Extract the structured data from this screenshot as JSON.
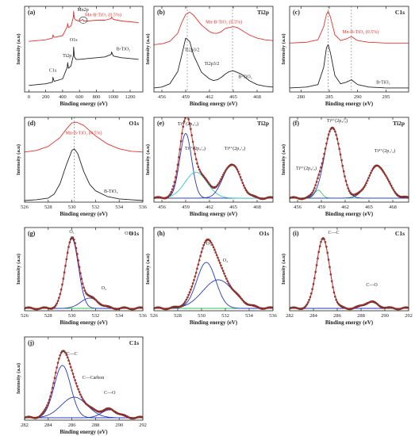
{
  "colors": {
    "black": "#222222",
    "red": "#e4322b",
    "blue": "#2638c8",
    "green": "#36c45a",
    "cyan": "#38c7c4",
    "dot": "#c0392b"
  },
  "chart_data": [
    {
      "id": "a",
      "type": "line",
      "tag": "(a)",
      "xlabel": "Binding energy (eV)",
      "ylabel": "Intensity (a.u)",
      "xlim": [
        -50,
        1350
      ],
      "ylim": [
        0,
        1.05
      ],
      "ticks": [
        0,
        200,
        400,
        600,
        800,
        1000,
        1200
      ],
      "series": [
        {
          "name": "Mn-B-TiO2 (0.5%)",
          "color": "red",
          "x": [
            0,
            100,
            200,
            280,
            285,
            300,
            400,
            455,
            460,
            470,
            500,
            528,
            531,
            540,
            560,
            600,
            640,
            650,
            700,
            800,
            900,
            975,
            980,
            1000,
            1050,
            1100,
            1200,
            1300
          ],
          "y": [
            0.62,
            0.63,
            0.64,
            0.66,
            0.7,
            0.67,
            0.69,
            0.8,
            0.84,
            0.79,
            0.81,
            0.92,
            0.99,
            0.9,
            0.88,
            0.87,
            0.89,
            0.87,
            0.87,
            0.88,
            0.88,
            0.9,
            0.92,
            0.89,
            0.88,
            0.87,
            0.86,
            0.85
          ]
        },
        {
          "name": "B-TiO2",
          "color": "black",
          "x": [
            0,
            100,
            200,
            280,
            285,
            300,
            400,
            455,
            460,
            470,
            500,
            528,
            531,
            540,
            560,
            600,
            700,
            800,
            900,
            975,
            980,
            1000,
            1050,
            1100,
            1200,
            1300
          ],
          "y": [
            0.08,
            0.09,
            0.1,
            0.12,
            0.18,
            0.13,
            0.16,
            0.3,
            0.36,
            0.29,
            0.32,
            0.45,
            0.55,
            0.43,
            0.4,
            0.4,
            0.41,
            0.42,
            0.43,
            0.46,
            0.49,
            0.44,
            0.43,
            0.42,
            0.41,
            0.4
          ]
        }
      ],
      "annotations": [
        {
          "text": "Mn2p",
          "x": 641,
          "y": 0.99,
          "color": "black"
        },
        {
          "text": "O1s",
          "x": 530,
          "y": 0.62,
          "color": "black"
        },
        {
          "text": "Ti2p",
          "x": 455,
          "y": 0.43,
          "color": "black"
        },
        {
          "text": "C1s",
          "x": 285,
          "y": 0.25,
          "color": "black"
        },
        {
          "text": "Mn-B-TiO₂ (0.5%)",
          "x": 880,
          "y": 0.93,
          "color": "red"
        },
        {
          "text": "B-TiO₂",
          "x": 1120,
          "y": 0.51,
          "color": "black"
        }
      ]
    },
    {
      "id": "b",
      "type": "line",
      "tag": "(b)",
      "corner": "Ti2p",
      "xlabel": "Binding energy (eV)",
      "ylabel": "Intensity (a.u)",
      "xlim": [
        455,
        470
      ],
      "ylim": [
        0,
        1.05
      ],
      "ticks": [
        456,
        459,
        462,
        465,
        468
      ],
      "vlines": [
        459.2,
        464.9
      ],
      "series": [
        {
          "name": "Mn-B-TiO2 (0.5%)",
          "color": "red",
          "x": [
            455,
            456,
            457,
            458,
            458.5,
            459,
            459.5,
            460,
            461,
            462,
            462.5,
            463,
            463.5,
            464,
            465,
            465.5,
            466,
            467,
            468,
            469,
            470
          ],
          "y": [
            0.58,
            0.59,
            0.62,
            0.72,
            0.85,
            0.95,
            0.98,
            0.94,
            0.82,
            0.74,
            0.72,
            0.72,
            0.74,
            0.78,
            0.8,
            0.79,
            0.76,
            0.7,
            0.66,
            0.64,
            0.63
          ]
        },
        {
          "name": "B-TiO2",
          "color": "black",
          "x": [
            455,
            456,
            457,
            458,
            458.5,
            459,
            459.5,
            460,
            461,
            462,
            462.5,
            463,
            463.5,
            464,
            464.5,
            465,
            466,
            467,
            468,
            469,
            470
          ],
          "y": [
            0.05,
            0.06,
            0.1,
            0.25,
            0.45,
            0.66,
            0.62,
            0.45,
            0.24,
            0.16,
            0.14,
            0.15,
            0.18,
            0.22,
            0.25,
            0.26,
            0.22,
            0.14,
            0.09,
            0.07,
            0.06
          ]
        }
      ],
      "annotations": [
        {
          "text": "Mn-B-TiO₂ (0.5%)",
          "x": 463.8,
          "y": 0.84,
          "color": "red"
        },
        {
          "text": "Ti2p3/2",
          "x": 459.8,
          "y": 0.5,
          "color": "black"
        },
        {
          "text": "Ti2p3/2",
          "x": 462.3,
          "y": 0.33,
          "color": "black"
        },
        {
          "text": "B-TiO₂",
          "x": 466.5,
          "y": 0.17,
          "color": "black"
        }
      ]
    },
    {
      "id": "c",
      "type": "line",
      "tag": "(c)",
      "corner": "C1s",
      "xlabel": "Binding energy (eV)",
      "ylabel": "Intensity (a.u)",
      "xlim": [
        278,
        299
      ],
      "ylim": [
        0,
        1.05
      ],
      "ticks": [
        280,
        285,
        290,
        295
      ],
      "vlines": [
        284.8,
        288.9
      ],
      "series": [
        {
          "name": "Mn-B-TiO2 (0.5%)",
          "color": "red",
          "x": [
            278,
            281,
            283,
            284,
            284.5,
            284.8,
            285.2,
            286,
            287,
            288,
            288.9,
            290,
            292,
            295,
            299
          ],
          "y": [
            0.6,
            0.61,
            0.64,
            0.8,
            0.95,
            0.99,
            0.92,
            0.7,
            0.63,
            0.65,
            0.68,
            0.63,
            0.61,
            0.6,
            0.6
          ]
        },
        {
          "name": "B-TiO2",
          "color": "black",
          "x": [
            278,
            281,
            283,
            284,
            284.5,
            284.8,
            285.2,
            286,
            287,
            288,
            288.9,
            290,
            292,
            295,
            299
          ],
          "y": [
            0.05,
            0.06,
            0.09,
            0.3,
            0.54,
            0.58,
            0.48,
            0.2,
            0.1,
            0.12,
            0.15,
            0.09,
            0.06,
            0.05,
            0.05
          ]
        }
      ],
      "annotations": [
        {
          "text": "Mn-B-TiO₂ (0.5%)",
          "x": 290.5,
          "y": 0.72,
          "color": "red"
        },
        {
          "text": "B-TiO₂",
          "x": 294.5,
          "y": 0.1,
          "color": "black"
        }
      ]
    },
    {
      "id": "d",
      "type": "line",
      "tag": "(d)",
      "corner": "O1s",
      "xlabel": "Binding energy (eV)",
      "ylabel": "Intensity (a.u)",
      "xlim": [
        526,
        536
      ],
      "ylim": [
        0,
        1.05
      ],
      "ticks": [
        526,
        528,
        530,
        532,
        534,
        536
      ],
      "vlines": [
        530.2
      ],
      "series": [
        {
          "name": "Mn-B-TiO2 (0.5%)",
          "color": "red",
          "x": [
            526,
            527,
            528,
            529,
            529.5,
            530,
            530.4,
            531,
            532,
            533,
            534,
            535,
            536
          ],
          "y": [
            0.62,
            0.64,
            0.69,
            0.8,
            0.9,
            0.98,
            0.99,
            0.95,
            0.82,
            0.72,
            0.66,
            0.63,
            0.62
          ]
        },
        {
          "name": "B-TiO2",
          "color": "black",
          "x": [
            526,
            527,
            528,
            528.5,
            529,
            529.5,
            530,
            530.2,
            530.5,
            531,
            531.5,
            532,
            533,
            534,
            535,
            536
          ],
          "y": [
            0.02,
            0.03,
            0.05,
            0.1,
            0.23,
            0.45,
            0.64,
            0.66,
            0.6,
            0.38,
            0.22,
            0.14,
            0.07,
            0.04,
            0.03,
            0.02
          ]
        }
      ],
      "annotations": [
        {
          "text": "Mn-B-TiO₂ (0.5%)",
          "x": 531.0,
          "y": 0.84,
          "color": "red"
        },
        {
          "text": "B-TiO₂",
          "x": 533.3,
          "y": 0.12,
          "color": "black"
        }
      ]
    },
    {
      "id": "e",
      "type": "fit",
      "tag": "(e)",
      "corner": "Ti2p",
      "xlabel": "Binding energy (eV)",
      "ylabel": "Intensity (a.u)",
      "xlim": [
        455,
        470
      ],
      "ylim": [
        0,
        1.05
      ],
      "baseline": 0.05,
      "ticks": [
        456,
        459,
        462,
        465,
        468
      ],
      "peaks": [
        {
          "color": "blue",
          "center": 459.0,
          "height": 0.8,
          "width": 0.75
        },
        {
          "color": "cyan",
          "center": 460.3,
          "height": 0.32,
          "width": 1.4
        },
        {
          "color": "blue",
          "center": 464.8,
          "height": 0.42,
          "width": 1.1
        }
      ],
      "annotations": [
        {
          "text": "Ti⁴⁺(2p₃/₂)",
          "x": 459.3,
          "y": 0.95,
          "color": "black"
        },
        {
          "text": "Ti³⁺(2p₃/₂)",
          "x": 460.2,
          "y": 0.65,
          "color": "black"
        },
        {
          "text": "Ti⁴⁺(2p₁/₂)",
          "x": 465.2,
          "y": 0.65,
          "color": "black"
        }
      ]
    },
    {
      "id": "f",
      "type": "fit",
      "tag": "(f)",
      "corner": "Ti2p",
      "xlabel": "Binding energy (eV)",
      "ylabel": "Intensity (a.u)",
      "xlim": [
        455,
        470
      ],
      "ylim": [
        0,
        1.05
      ],
      "baseline": 0.05,
      "ticks": [
        456,
        459,
        462,
        465,
        468
      ],
      "peaks": [
        {
          "color": "green",
          "center": 458.6,
          "height": 0.1,
          "width": 0.45
        },
        {
          "color": "blue",
          "center": 460.4,
          "height": 0.88,
          "width": 1.0
        },
        {
          "color": "blue",
          "center": 466.1,
          "height": 0.4,
          "width": 1.2
        }
      ],
      "annotations": [
        {
          "text": "Ti⁴⁺(2p₃/₂)",
          "x": 461.0,
          "y": 0.99,
          "color": "black"
        },
        {
          "text": "Ti³⁺(2p₃/₂)",
          "x": 457.1,
          "y": 0.4,
          "color": "black"
        },
        {
          "text": "Ti⁴⁺(2p₁/₂)",
          "x": 467.0,
          "y": 0.62,
          "color": "black"
        }
      ]
    },
    {
      "id": "g",
      "type": "fit",
      "tag": "(g)",
      "corner": "O1s",
      "xlabel": "Binding energy (eV)",
      "ylabel": "Intensity (a.u)",
      "xlim": [
        526,
        536
      ],
      "ylim": [
        0,
        1.05
      ],
      "baseline": 0.03,
      "ticks": [
        526,
        528,
        530,
        532,
        534,
        536
      ],
      "peaks": [
        {
          "color": "blue",
          "center": 530.0,
          "height": 0.88,
          "width": 0.55
        },
        {
          "color": "blue",
          "center": 531.5,
          "height": 0.13,
          "width": 0.75
        }
      ],
      "annotations": [
        {
          "text": "O₁",
          "x": 530.0,
          "y": 0.98,
          "color": "black"
        },
        {
          "text": "O1s",
          "x": 534.8,
          "y": 0.96,
          "color": "black"
        },
        {
          "text": "O₂",
          "x": 532.7,
          "y": 0.27,
          "color": "black"
        }
      ]
    },
    {
      "id": "h",
      "type": "fit",
      "tag": "(h)",
      "corner": "O1s",
      "xlabel": "Binding energy (eV)",
      "ylabel": "Intensity (a.u)",
      "xlim": [
        526,
        536
      ],
      "ylim": [
        0,
        1.05
      ],
      "baseline": 0.03,
      "ticks": [
        526,
        528,
        530,
        532,
        534,
        536
      ],
      "peaks": [
        {
          "color": "blue",
          "center": 530.4,
          "height": 0.58,
          "width": 0.8
        },
        {
          "color": "blue",
          "center": 531.4,
          "height": 0.36,
          "width": 1.3
        }
      ],
      "annotations": [
        {
          "text": "O₁",
          "x": 530.6,
          "y": 0.83,
          "color": "black"
        },
        {
          "text": "O₂",
          "x": 532.0,
          "y": 0.62,
          "color": "black"
        }
      ]
    },
    {
      "id": "i",
      "type": "fit",
      "tag": "(i)",
      "corner": "C1s",
      "xlabel": "Binding energy (eV)",
      "ylabel": "Intensity (a.u)",
      "xlim": [
        282,
        292
      ],
      "ylim": [
        0,
        1.05
      ],
      "baseline": 0.03,
      "ticks": [
        282,
        284,
        286,
        288,
        290,
        292
      ],
      "peaks": [
        {
          "color": "blue",
          "center": 284.8,
          "height": 0.88,
          "width": 0.55
        },
        {
          "color": "blue",
          "center": 288.8,
          "height": 0.08,
          "width": 0.6
        }
      ],
      "annotations": [
        {
          "text": "C—C",
          "x": 285.7,
          "y": 0.97,
          "color": "black"
        },
        {
          "text": "C—O",
          "x": 288.9,
          "y": 0.31,
          "color": "black"
        }
      ]
    },
    {
      "id": "j",
      "type": "fit",
      "tag": "(j)",
      "corner": "C1s",
      "xlabel": "Binding energy (eV)",
      "ylabel": "Intensity (a.u)",
      "xlim": [
        282,
        292
      ],
      "ylim": [
        0,
        1.05
      ],
      "baseline": 0.03,
      "ticks": [
        282,
        284,
        286,
        288,
        290,
        292
      ],
      "peaks": [
        {
          "color": "blue",
          "center": 285.2,
          "height": 0.66,
          "width": 0.7
        },
        {
          "color": "blue",
          "center": 286.2,
          "height": 0.26,
          "width": 1.1
        },
        {
          "color": "blue",
          "center": 289.2,
          "height": 0.1,
          "width": 0.7
        }
      ],
      "annotations": [
        {
          "text": "C—C",
          "x": 286.0,
          "y": 0.82,
          "color": "black"
        },
        {
          "text": "C—Carbon",
          "x": 287.8,
          "y": 0.52,
          "color": "black"
        },
        {
          "text": "C—O",
          "x": 289.2,
          "y": 0.33,
          "color": "black"
        }
      ]
    }
  ]
}
